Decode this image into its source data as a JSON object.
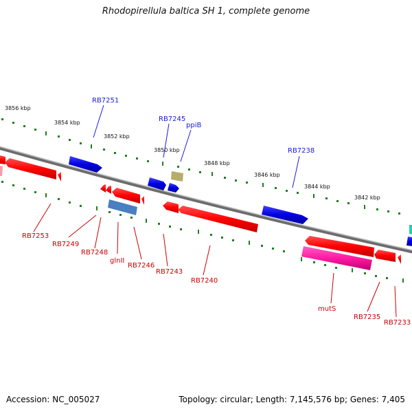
{
  "title": "Rhodopirellula baltica SH 1, complete genome",
  "footer": {
    "accession": "Accession: NC_005027",
    "summary": "Topology: circular; Length: 7,145,576 bp; Genes: 7,405"
  },
  "colors": {
    "backbone": "#808080",
    "tick": "#1f7f1f",
    "cds_forward": "#0000e0",
    "cds_reverse": "#ff0000",
    "misc_olive": "#b8b070",
    "misc_steelblue": "#4a7fc0",
    "mutS_magenta": "#ff1aa3",
    "teal": "#20d0b0",
    "label_forward": "#1a1ad6",
    "label_reverse": "#c80000"
  },
  "scale_labels": [
    "3856 kbp",
    "3854 kbp",
    "3852 kbp",
    "3850 kbp",
    "3848 kbp",
    "3846 kbp",
    "3844 kbp",
    "3842 kbp"
  ],
  "forward_labels": [
    "RB7251",
    "RB7245",
    "ppiB",
    "RB7238"
  ],
  "reverse_labels": [
    "RB7253",
    "RB7249",
    "RB7248",
    "glnII",
    "RB7246",
    "RB7243",
    "RB7240",
    "mutS",
    "RB7235",
    "RB7233"
  ]
}
